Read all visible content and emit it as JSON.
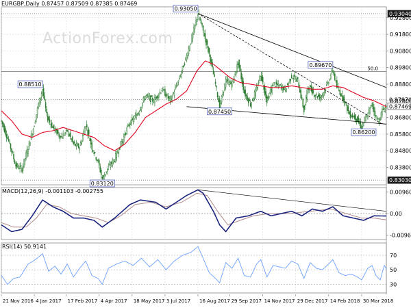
{
  "watermark": "ActionForex.com",
  "colors": {
    "candle": "#2e7d32",
    "ma": "#e0001b",
    "macd": "#1a237e",
    "signal": "#b08a8a",
    "rsi": "#6aa0ff",
    "trend": "#000000",
    "grid": "#cfcfcf",
    "text": "#000000"
  },
  "chart_data": [
    {
      "type": "candlestick",
      "title": "EURGBP,Daily",
      "ohlc_readout": [
        "0.87457",
        "0.87509",
        "0.87385",
        "0.87469"
      ],
      "ylim": [
        0.8275,
        0.9345
      ],
      "y_ticks": [
        "0.92800",
        "0.91800",
        "0.90800",
        "0.89800",
        "0.88800",
        "0.87800",
        "0.86800",
        "0.85800",
        "0.84800",
        "0.83800"
      ],
      "y_tick_values": [
        0.928,
        0.918,
        0.908,
        0.898,
        0.888,
        0.878,
        0.868,
        0.858,
        0.848,
        0.838
      ],
      "x_labels": [
        "21 Nov 2016",
        "4 Jan 2017",
        "17 Feb 2017",
        "4 Apr 2017",
        "18 May 2017",
        "3 Jul 2017",
        "16 Aug 2017",
        "29 Sep 2017",
        "14 Nov 2017",
        "29 Dec 2017",
        "14 Feb 2018",
        "30 Mar 2018"
      ],
      "x_label_index": [
        0,
        32,
        63,
        95,
        127,
        159,
        191,
        222,
        254,
        286,
        318,
        350
      ],
      "bars_total": 375,
      "price_path": [
        [
          0,
          0.866
        ],
        [
          8,
          0.852
        ],
        [
          14,
          0.839
        ],
        [
          20,
          0.837
        ],
        [
          26,
          0.85
        ],
        [
          32,
          0.864
        ],
        [
          36,
          0.876
        ],
        [
          40,
          0.8851
        ],
        [
          44,
          0.869
        ],
        [
          50,
          0.862
        ],
        [
          58,
          0.856
        ],
        [
          64,
          0.86
        ],
        [
          70,
          0.852
        ],
        [
          76,
          0.85
        ],
        [
          82,
          0.864
        ],
        [
          88,
          0.85
        ],
        [
          94,
          0.841
        ],
        [
          98,
          0.8312
        ],
        [
          104,
          0.838
        ],
        [
          110,
          0.843
        ],
        [
          116,
          0.852
        ],
        [
          124,
          0.864
        ],
        [
          132,
          0.87
        ],
        [
          140,
          0.881
        ],
        [
          148,
          0.878
        ],
        [
          156,
          0.885
        ],
        [
          164,
          0.878
        ],
        [
          172,
          0.89
        ],
        [
          180,
          0.905
        ],
        [
          186,
          0.918
        ],
        [
          191,
          0.9305
        ],
        [
          196,
          0.92
        ],
        [
          202,
          0.906
        ],
        [
          208,
          0.888
        ],
        [
          212,
          0.8745
        ],
        [
          218,
          0.89
        ],
        [
          224,
          0.888
        ],
        [
          230,
          0.901
        ],
        [
          236,
          0.883
        ],
        [
          242,
          0.876
        ],
        [
          248,
          0.885
        ],
        [
          252,
          0.894
        ],
        [
          258,
          0.878
        ],
        [
          264,
          0.888
        ],
        [
          270,
          0.887
        ],
        [
          276,
          0.885
        ],
        [
          282,
          0.893
        ],
        [
          288,
          0.89
        ],
        [
          294,
          0.872
        ],
        [
          298,
          0.887
        ],
        [
          304,
          0.882
        ],
        [
          310,
          0.88
        ],
        [
          316,
          0.887
        ],
        [
          322,
          0.8967
        ],
        [
          326,
          0.886
        ],
        [
          332,
          0.88
        ],
        [
          338,
          0.87
        ],
        [
          344,
          0.868
        ],
        [
          350,
          0.862
        ],
        [
          356,
          0.87
        ],
        [
          360,
          0.876
        ],
        [
          364,
          0.868
        ],
        [
          367,
          0.866
        ],
        [
          370,
          0.872
        ],
        [
          374,
          0.8747
        ]
      ],
      "ma_path": [
        [
          0,
          0.872
        ],
        [
          10,
          0.866
        ],
        [
          20,
          0.858
        ],
        [
          30,
          0.856
        ],
        [
          40,
          0.859
        ],
        [
          50,
          0.86
        ],
        [
          60,
          0.862
        ],
        [
          70,
          0.86
        ],
        [
          80,
          0.858
        ],
        [
          90,
          0.856
        ],
        [
          100,
          0.851
        ],
        [
          110,
          0.848
        ],
        [
          120,
          0.852
        ],
        [
          130,
          0.859
        ],
        [
          140,
          0.868
        ],
        [
          150,
          0.872
        ],
        [
          160,
          0.876
        ],
        [
          170,
          0.879
        ],
        [
          180,
          0.884
        ],
        [
          190,
          0.896
        ],
        [
          198,
          0.902
        ],
        [
          206,
          0.9
        ],
        [
          214,
          0.896
        ],
        [
          222,
          0.892
        ],
        [
          232,
          0.889
        ],
        [
          242,
          0.888
        ],
        [
          252,
          0.887
        ],
        [
          262,
          0.886
        ],
        [
          272,
          0.886
        ],
        [
          282,
          0.887
        ],
        [
          292,
          0.886
        ],
        [
          302,
          0.885
        ],
        [
          312,
          0.885
        ],
        [
          322,
          0.887
        ],
        [
          332,
          0.886
        ],
        [
          342,
          0.883
        ],
        [
          352,
          0.88
        ],
        [
          362,
          0.878
        ],
        [
          374,
          0.8745
        ]
      ],
      "trendlines": [
        {
          "from": [
            191,
            0.9305
          ],
          "to": [
            374,
            0.886
          ],
          "style": "solid"
        },
        {
          "from": [
            191,
            0.9305
          ],
          "to": [
            370,
            0.864
          ],
          "style": "dashed"
        },
        {
          "from": [
            180,
            0.8745
          ],
          "to": [
            374,
            0.864
          ],
          "style": "solid"
        }
      ],
      "hlines": [
        {
          "value": 0.9304,
          "label": "0.93040",
          "style": "dotted"
        },
        {
          "value": 0.8956,
          "label": "50.0",
          "style": "solid"
        },
        {
          "value": 0.8787,
          "label": "0.87870",
          "style": "dotted"
        },
        {
          "value": 0.8303,
          "label": "0.83030",
          "style": "dotted"
        }
      ],
      "annotations": [
        {
          "label": "0.93050",
          "at": [
            191,
            0.9305
          ],
          "anchor": "left-top"
        },
        {
          "label": "0.88510",
          "at": [
            40,
            0.8851
          ],
          "anchor": "left-top"
        },
        {
          "label": "0.87450",
          "at": [
            212,
            0.8745
          ],
          "anchor": "below"
        },
        {
          "label": "0.89670",
          "at": [
            322,
            0.8967
          ],
          "anchor": "left-top"
        },
        {
          "label": "0.86200",
          "at": [
            352,
            0.862
          ],
          "anchor": "below"
        },
        {
          "label": "0.83120",
          "at": [
            98,
            0.8312
          ],
          "anchor": "below"
        }
      ],
      "axis_markers": [
        {
          "label": "0.93040",
          "value": 0.9304,
          "style": "box-dark"
        },
        {
          "label": "0.87870",
          "value": 0.8787,
          "style": "plain"
        },
        {
          "label": "0.87469",
          "value": 0.87469,
          "style": "box"
        },
        {
          "label": "0.83030",
          "value": 0.8303,
          "style": "box-dark"
        }
      ]
    },
    {
      "type": "line",
      "title": "MACD(12,26,9) -0.001103 -0.002755",
      "ylim": [
        -0.0115,
        0.0115
      ],
      "y_ticks": [
        "0.009608",
        "0.00",
        "-0.00961"
      ],
      "y_tick_values": [
        0.0096,
        0.0,
        -0.0096
      ],
      "zero_line": 0.0,
      "macd_path": [
        [
          0,
          -0.005
        ],
        [
          10,
          -0.008
        ],
        [
          20,
          -0.007
        ],
        [
          30,
          -0.001
        ],
        [
          40,
          0.006
        ],
        [
          50,
          0.003
        ],
        [
          60,
          0.001
        ],
        [
          70,
          -0.002
        ],
        [
          80,
          -0.002
        ],
        [
          90,
          -0.003
        ],
        [
          98,
          -0.006
        ],
        [
          110,
          -0.002
        ],
        [
          125,
          0.004
        ],
        [
          135,
          0.006
        ],
        [
          150,
          0.005
        ],
        [
          160,
          0.002
        ],
        [
          170,
          0.005
        ],
        [
          180,
          0.008
        ],
        [
          191,
          0.0105
        ],
        [
          196,
          0.009
        ],
        [
          206,
          0.001
        ],
        [
          212,
          -0.005
        ],
        [
          218,
          -0.008
        ],
        [
          228,
          -0.002
        ],
        [
          240,
          -0.001
        ],
        [
          252,
          0.001
        ],
        [
          262,
          -0.001
        ],
        [
          272,
          0.0
        ],
        [
          282,
          0.001
        ],
        [
          292,
          -0.001
        ],
        [
          302,
          0.002
        ],
        [
          312,
          0.001
        ],
        [
          322,
          0.003
        ],
        [
          332,
          -0.001
        ],
        [
          342,
          -0.002
        ],
        [
          352,
          -0.003
        ],
        [
          362,
          -0.001
        ],
        [
          374,
          -0.0011
        ]
      ],
      "signal_path": [
        [
          0,
          -0.004
        ],
        [
          12,
          -0.006
        ],
        [
          24,
          -0.006
        ],
        [
          34,
          -0.002
        ],
        [
          44,
          0.004
        ],
        [
          56,
          0.003
        ],
        [
          68,
          0.0
        ],
        [
          80,
          -0.001
        ],
        [
          92,
          -0.002
        ],
        [
          104,
          -0.004
        ],
        [
          116,
          -0.001
        ],
        [
          130,
          0.004
        ],
        [
          145,
          0.005
        ],
        [
          160,
          0.003
        ],
        [
          175,
          0.005
        ],
        [
          190,
          0.009
        ],
        [
          200,
          0.008
        ],
        [
          210,
          0.001
        ],
        [
          220,
          -0.005
        ],
        [
          232,
          -0.003
        ],
        [
          245,
          -0.001
        ],
        [
          260,
          0.0
        ],
        [
          280,
          0.0
        ],
        [
          300,
          0.001
        ],
        [
          320,
          0.002
        ],
        [
          335,
          0.0
        ],
        [
          350,
          -0.002
        ],
        [
          362,
          -0.002
        ],
        [
          374,
          -0.0028
        ]
      ],
      "trendline": {
        "from": [
          191,
          0.0105
        ],
        "to": [
          374,
          0.001
        ]
      }
    },
    {
      "type": "line",
      "title": "RSI(14) 50.9141",
      "ylim": [
        18,
        87
      ],
      "y_ticks": [
        "70",
        "50",
        "30"
      ],
      "y_tick_values": [
        70,
        50,
        30
      ],
      "rsi_path": [
        [
          0,
          42
        ],
        [
          6,
          30
        ],
        [
          12,
          38
        ],
        [
          18,
          40
        ],
        [
          26,
          58
        ],
        [
          32,
          63
        ],
        [
          40,
          72
        ],
        [
          46,
          48
        ],
        [
          52,
          55
        ],
        [
          58,
          44
        ],
        [
          64,
          58
        ],
        [
          70,
          40
        ],
        [
          76,
          52
        ],
        [
          82,
          62
        ],
        [
          88,
          42
        ],
        [
          94,
          38
        ],
        [
          98,
          30
        ],
        [
          104,
          52
        ],
        [
          112,
          58
        ],
        [
          120,
          62
        ],
        [
          128,
          56
        ],
        [
          136,
          66
        ],
        [
          144,
          54
        ],
        [
          152,
          64
        ],
        [
          160,
          50
        ],
        [
          168,
          62
        ],
        [
          176,
          70
        ],
        [
          184,
          74
        ],
        [
          191,
          82
        ],
        [
          196,
          66
        ],
        [
          202,
          46
        ],
        [
          208,
          38
        ],
        [
          212,
          32
        ],
        [
          218,
          60
        ],
        [
          224,
          52
        ],
        [
          230,
          66
        ],
        [
          236,
          42
        ],
        [
          242,
          40
        ],
        [
          248,
          58
        ],
        [
          252,
          64
        ],
        [
          258,
          40
        ],
        [
          264,
          56
        ],
        [
          270,
          54
        ],
        [
          276,
          52
        ],
        [
          282,
          62
        ],
        [
          288,
          58
        ],
        [
          294,
          38
        ],
        [
          300,
          60
        ],
        [
          306,
          52
        ],
        [
          312,
          50
        ],
        [
          318,
          58
        ],
        [
          322,
          64
        ],
        [
          328,
          46
        ],
        [
          334,
          42
        ],
        [
          340,
          44
        ],
        [
          346,
          40
        ],
        [
          350,
          36
        ],
        [
          356,
          52
        ],
        [
          360,
          56
        ],
        [
          364,
          42
        ],
        [
          368,
          36
        ],
        [
          372,
          56
        ],
        [
          374,
          51
        ]
      ]
    }
  ]
}
